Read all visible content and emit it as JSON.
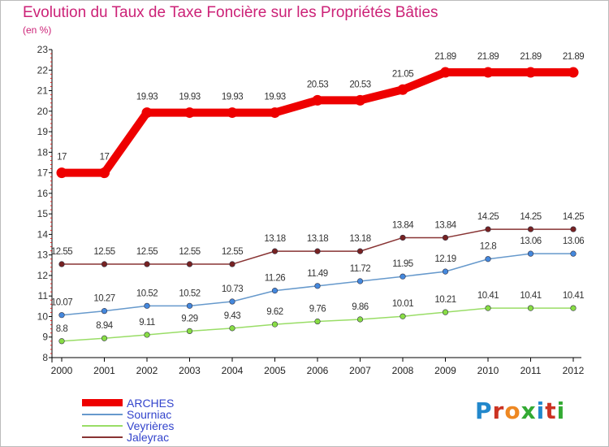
{
  "title": "Evolution du Taux de Taxe Foncière sur les Propriétés Bâties",
  "subtitle": "(en %)",
  "logo": {
    "letters": [
      "P",
      "r",
      "o",
      "x",
      "i",
      "t",
      "i"
    ],
    "colors": [
      "#2288cc",
      "#cc3322",
      "#ee8822",
      "#33aa33",
      "#2288cc",
      "#cc3322",
      "#33aa33"
    ]
  },
  "chart_data": {
    "type": "line",
    "title": "Evolution du Taux de Taxe Foncière sur les Propriétés Bâties",
    "ylabel": "(en %)",
    "xlabel": "",
    "x": [
      "2000",
      "2001",
      "2002",
      "2003",
      "2004",
      "2005",
      "2006",
      "2007",
      "2008",
      "2009",
      "2010",
      "2011",
      "2012"
    ],
    "ylim": [
      8,
      23
    ],
    "yticks": [
      "8",
      "9",
      "10",
      "11",
      "12",
      "13",
      "14",
      "15",
      "16",
      "17",
      "18",
      "19",
      "20",
      "21",
      "22",
      "23"
    ],
    "grid": false,
    "legend_position": "bottom-left",
    "series": [
      {
        "name": "ARCHES",
        "color": "#ee0000",
        "marker": "#ee0000",
        "width": "thick",
        "values": [
          17,
          17,
          19.93,
          19.93,
          19.93,
          19.93,
          20.53,
          20.53,
          21.05,
          21.89,
          21.89,
          21.89,
          21.89
        ],
        "labels": [
          "17",
          "17",
          "19.93",
          "19.93",
          "19.93",
          "19.93",
          "20.53",
          "20.53",
          "21.05",
          "21.89",
          "21.89",
          "21.89",
          "21.89"
        ]
      },
      {
        "name": "Sourniac",
        "color": "#6699cc",
        "marker": "#4488dd",
        "width": "thin",
        "values": [
          10.07,
          10.27,
          10.52,
          10.52,
          10.73,
          11.26,
          11.49,
          11.72,
          11.95,
          12.19,
          12.8,
          13.06,
          13.06
        ],
        "labels": [
          "10.07",
          "10.27",
          "10.52",
          "10.52",
          "10.73",
          "11.26",
          "11.49",
          "11.72",
          "11.95",
          "12.19",
          "12.8",
          "13.06",
          "13.06"
        ]
      },
      {
        "name": "Veyrières",
        "color": "#99dd66",
        "marker": "#88dd44",
        "width": "thin",
        "values": [
          8.8,
          8.94,
          9.11,
          9.29,
          9.43,
          9.62,
          9.76,
          9.86,
          10.01,
          10.21,
          10.41,
          10.41,
          10.41
        ],
        "labels": [
          "8.8",
          "8.94",
          "9.11",
          "9.29",
          "9.43",
          "9.62",
          "9.76",
          "9.86",
          "10.01",
          "10.21",
          "10.41",
          "10.41",
          "10.41"
        ]
      },
      {
        "name": "Jaleyrac",
        "color": "#883333",
        "marker": "#772222",
        "width": "thin",
        "values": [
          12.55,
          12.55,
          12.55,
          12.55,
          12.55,
          13.18,
          13.18,
          13.18,
          13.84,
          13.84,
          14.25,
          14.25,
          14.25
        ],
        "labels": [
          "12.55",
          "12.55",
          "12.55",
          "12.55",
          "12.55",
          "13.18",
          "13.18",
          "13.18",
          "13.84",
          "13.84",
          "14.25",
          "14.25",
          "14.25"
        ]
      }
    ]
  }
}
